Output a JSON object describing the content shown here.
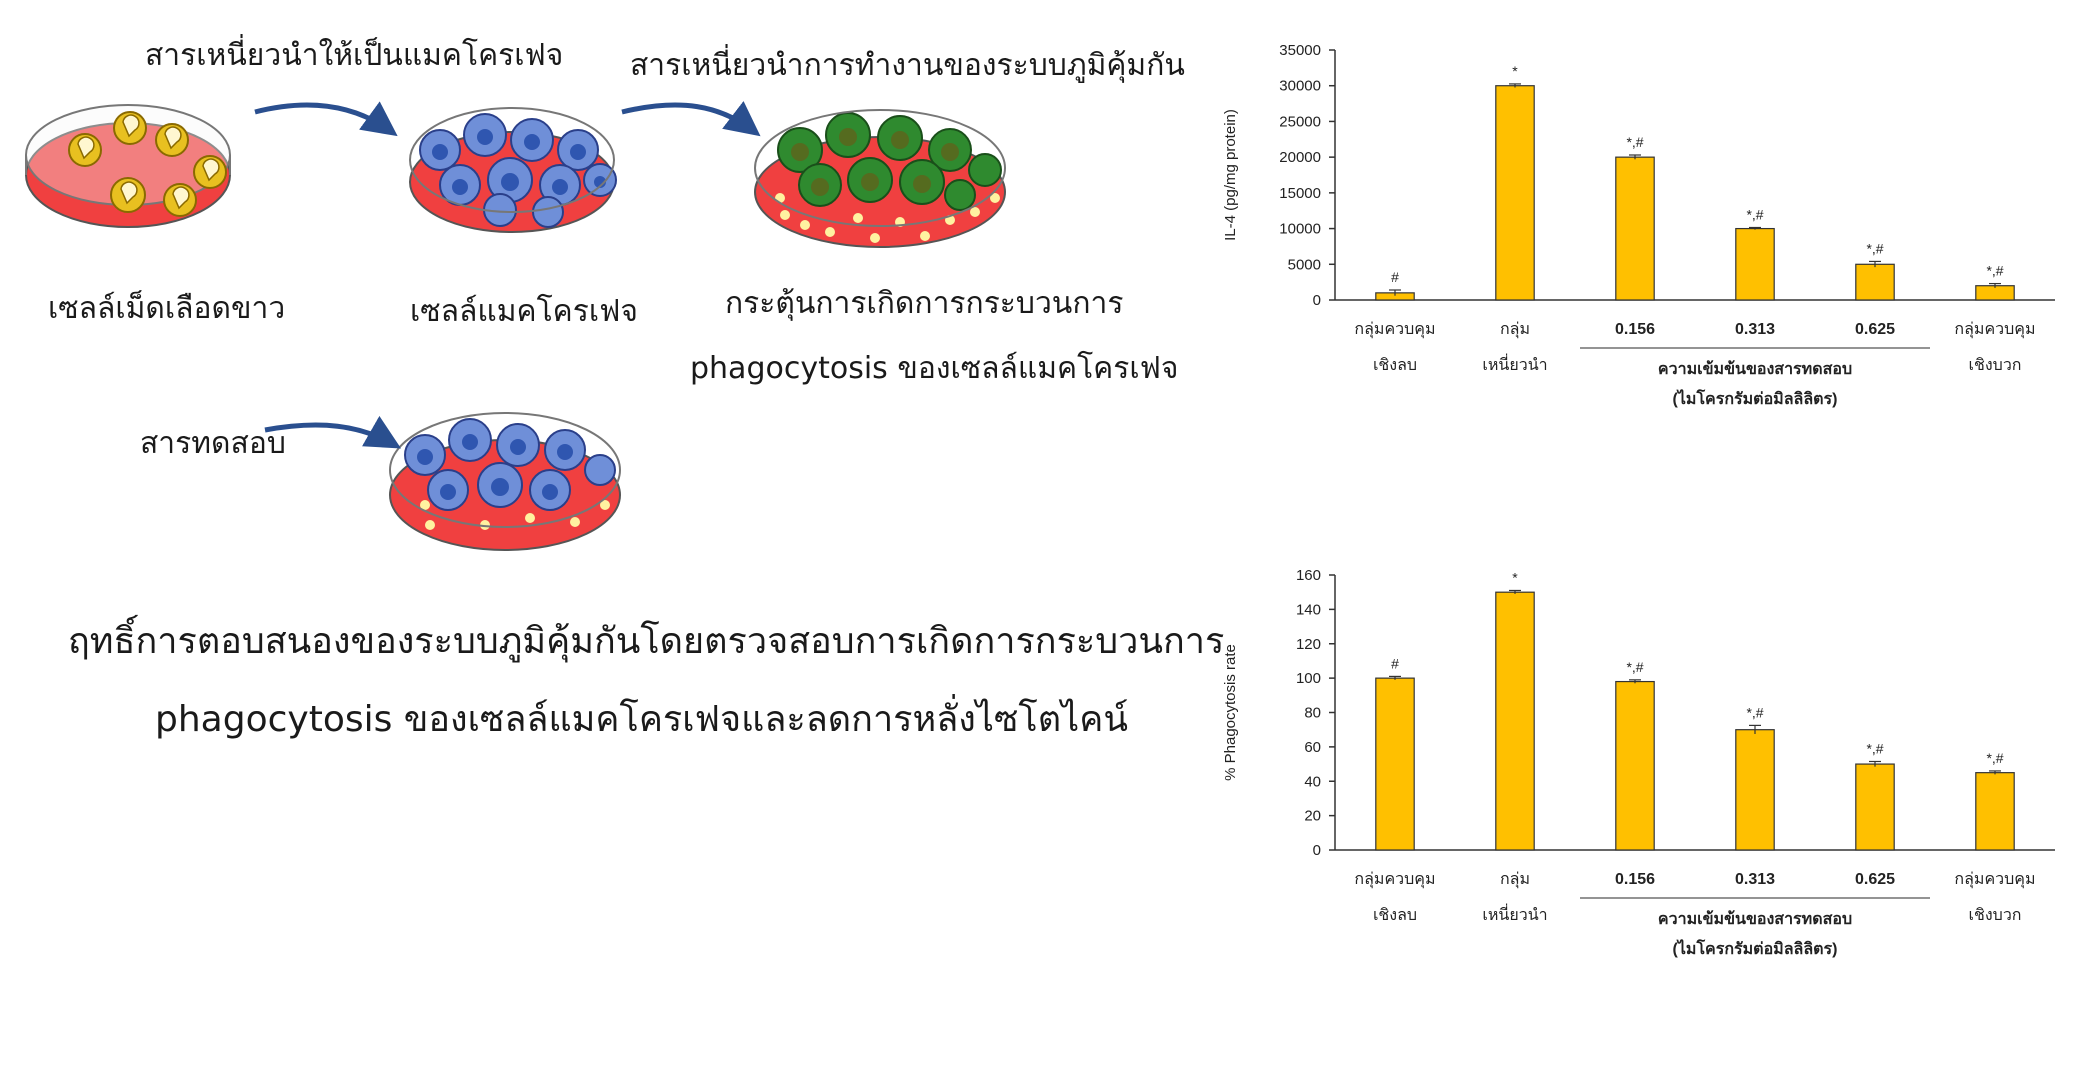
{
  "diagram": {
    "step_labels": {
      "inducer_macrophage": "สารเหนี่ยวนำให้เป็นแมคโครเฟจ",
      "immune_activator": "สารเหนี่ยวนำการทำงานของระบบภูมิคุ้มกัน",
      "test_substance": "สารทดสอบ"
    },
    "dish_labels": {
      "white_blood_cells": "เซลล์เม็ดเลือดขาว",
      "macrophage": "เซลล์แมคโครเฟจ",
      "stimulate_line1": "กระตุ้นการเกิดการกระบวนการ",
      "stimulate_line2": "phagocytosis ของเซลล์แมคโครเฟจ"
    },
    "caption_line1": "ฤทธิ์การตอบสนองของระบบภูมิคุ้มกันโดยตรวจสอบการเกิดการกระบวนการ",
    "caption_line2": "phagocytosis ของเซลล์แมคโครเฟจและลดการหลั่งไซโตไคน์",
    "colors": {
      "dish_red": "#f04040",
      "wbc_yellow": "#e8c020",
      "macrophage_blue": "#6f8fd8",
      "activated_green": "#2f8a2f",
      "arrow_blue": "#2a4f8f",
      "particle": "#fff2a0"
    }
  },
  "chart_data": [
    {
      "type": "bar",
      "ylabel": "IL-4 (pg/mg protein)",
      "ylim": [
        0,
        35000
      ],
      "yticks": [
        "0",
        "5000",
        "10000",
        "15000",
        "20000",
        "25000",
        "30000",
        "35000"
      ],
      "categories": [
        {
          "line1": "กลุ่มควบคุม",
          "line2": "เชิงลบ"
        },
        {
          "line1": "กลุ่ม",
          "line2": "เหนี่ยวนำ"
        },
        {
          "line1": "0.156",
          "line2": ""
        },
        {
          "line1": "0.313",
          "line2": ""
        },
        {
          "line1": "0.625",
          "line2": ""
        },
        {
          "line1": "กลุ่มควบคุม",
          "line2": "เชิงบวก"
        }
      ],
      "values": [
        1000,
        30000,
        20000,
        10000,
        5000,
        2000
      ],
      "errors": [
        400,
        250,
        300,
        150,
        400,
        300
      ],
      "annotations": [
        "#",
        "*",
        "*,#",
        "*,#",
        "*,#",
        "*,#"
      ],
      "group_label_line1": "ความเข้มข้นของสารทดสอบ",
      "group_label_line2": "(ไมโครกรัมต่อมิลลิลิตร)",
      "grid": false,
      "color": "#ffc000"
    },
    {
      "type": "bar",
      "ylabel": "% Phagocytosis rate",
      "ylim": [
        0,
        160
      ],
      "yticks": [
        "0",
        "20",
        "40",
        "60",
        "80",
        "100",
        "120",
        "140",
        "160"
      ],
      "categories": [
        {
          "line1": "กลุ่มควบคุม",
          "line2": "เชิงลบ"
        },
        {
          "line1": "กลุ่ม",
          "line2": "เหนี่ยวนำ"
        },
        {
          "line1": "0.156",
          "line2": ""
        },
        {
          "line1": "0.313",
          "line2": ""
        },
        {
          "line1": "0.625",
          "line2": ""
        },
        {
          "line1": "กลุ่มควบคุม",
          "line2": "เชิงบวก"
        }
      ],
      "values": [
        100,
        150,
        98,
        70,
        50,
        45
      ],
      "errors": [
        1,
        1,
        1,
        2.5,
        1.5,
        1
      ],
      "annotations": [
        "#",
        "*",
        "*,#",
        "*,#",
        "*,#",
        "*,#"
      ],
      "group_label_line1": "ความเข้มข้นของสารทดสอบ",
      "group_label_line2": "(ไมโครกรัมต่อมิลลิลิตร)",
      "grid": false,
      "color": "#ffc000"
    }
  ]
}
